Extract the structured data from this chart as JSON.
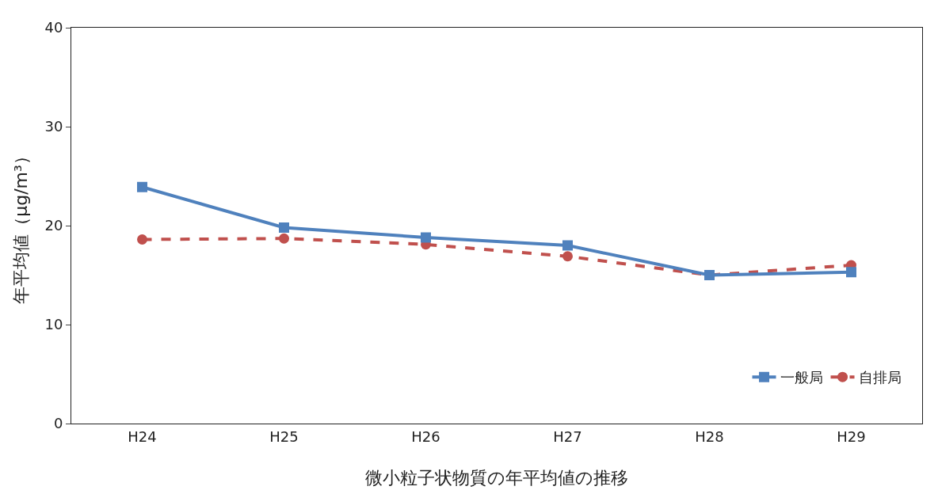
{
  "chart_data": {
    "type": "line",
    "xlabel": "微小粒子状物質の年平均値の推移",
    "ylabel": "年平均値（μg/m³）",
    "categories": [
      "H24",
      "H25",
      "H26",
      "H27",
      "H28",
      "H29"
    ],
    "series": [
      {
        "name": "一般局",
        "color": "#4f81bd",
        "values": [
          23.9,
          19.8,
          18.8,
          18.0,
          15.0,
          15.3
        ],
        "marker": "square",
        "line_style": "solid"
      },
      {
        "name": "自排局",
        "color": "#c0504d",
        "values": [
          18.6,
          18.7,
          18.1,
          16.9,
          15.0,
          16.0
        ],
        "marker": "circle",
        "line_style": "dashed"
      }
    ],
    "ylim": [
      0,
      40
    ],
    "yticks": [
      0,
      10,
      20,
      30,
      40
    ],
    "grid": false,
    "legend": "bottom right"
  }
}
